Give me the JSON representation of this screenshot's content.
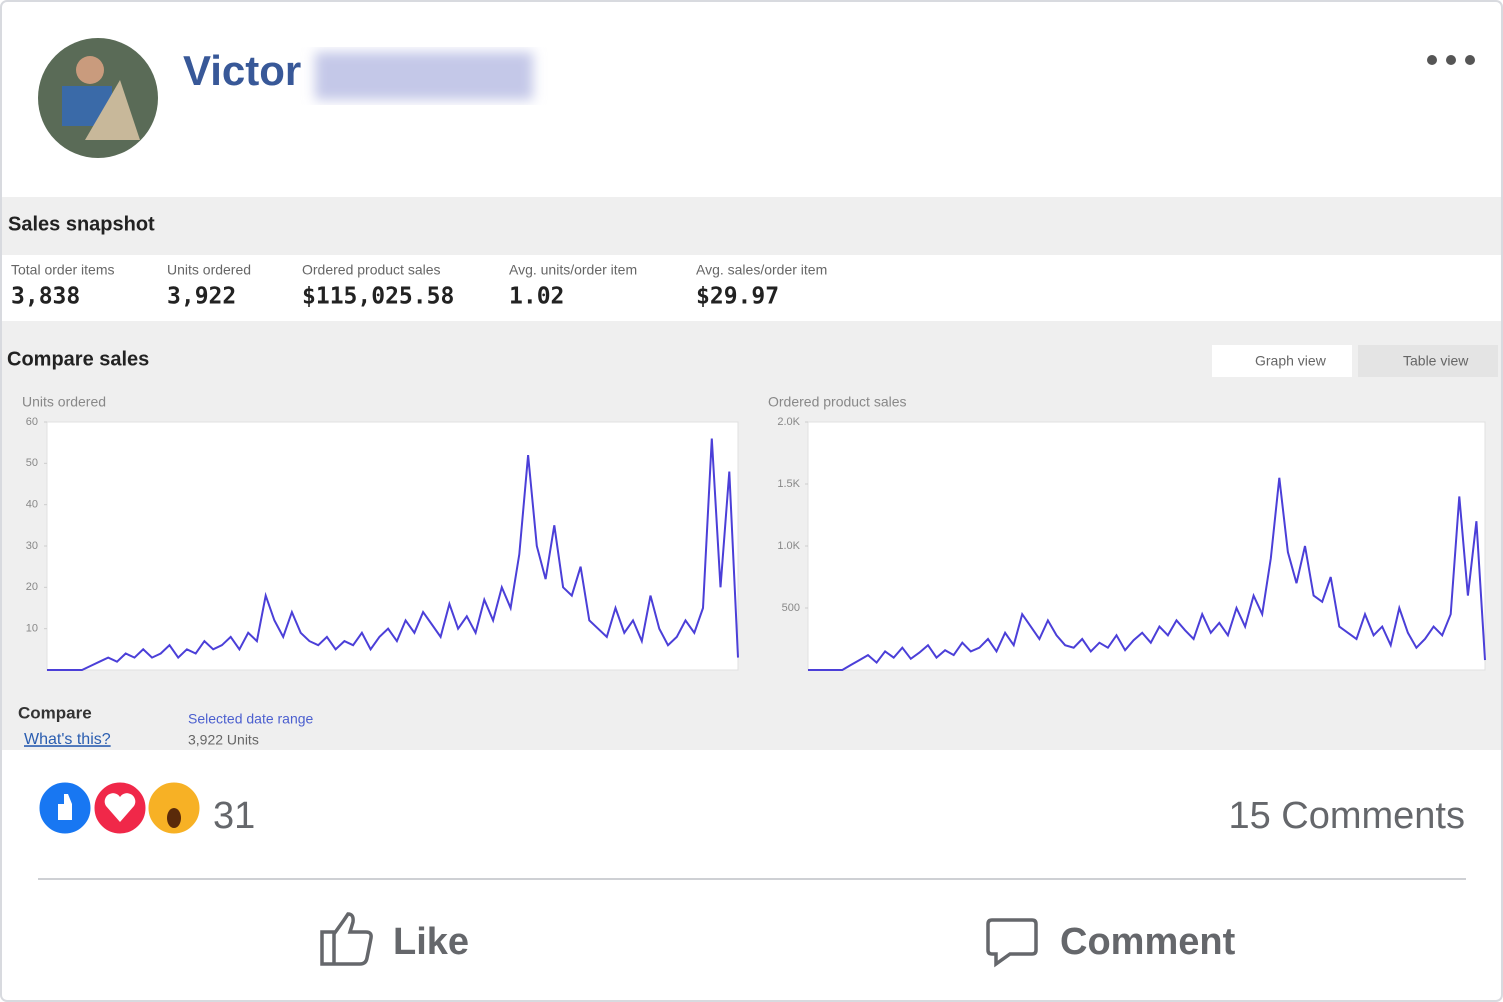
{
  "post": {
    "author": "Victor",
    "reactions": 31,
    "comments": "15 Comments",
    "like": "Like",
    "comment": "Comment"
  },
  "snapshot": {
    "title": "Sales snapshot",
    "metrics": [
      {
        "label": "Total order items",
        "value": "3,838"
      },
      {
        "label": "Units ordered",
        "value": "3,922"
      },
      {
        "label": "Ordered product sales",
        "value": "$115,025.58"
      },
      {
        "label": "Avg. units/order item",
        "value": "1.02"
      },
      {
        "label": "Avg. sales/order item",
        "value": "$29.97"
      }
    ]
  },
  "compare": {
    "title": "Compare sales",
    "graph_view": "Graph view",
    "table_view": "Table view",
    "compare_label": "Compare",
    "whats_this": "What's this?",
    "selected": "Selected date range",
    "units": "3,922 Units"
  },
  "chart_data": [
    {
      "type": "line",
      "title": "Units ordered",
      "color": "#4b3fd8",
      "ylim": [
        0,
        60
      ],
      "yticks": [
        10,
        20,
        30,
        40,
        50,
        60
      ],
      "values": [
        0,
        0,
        0,
        0,
        0,
        1,
        2,
        3,
        2,
        4,
        3,
        5,
        3,
        4,
        6,
        3,
        5,
        4,
        7,
        5,
        6,
        8,
        5,
        9,
        7,
        18,
        12,
        8,
        14,
        9,
        7,
        6,
        8,
        5,
        7,
        6,
        9,
        5,
        8,
        10,
        7,
        12,
        9,
        14,
        11,
        8,
        16,
        10,
        13,
        9,
        17,
        12,
        20,
        15,
        28,
        52,
        30,
        22,
        35,
        20,
        18,
        25,
        12,
        10,
        8,
        15,
        9,
        12,
        7,
        18,
        10,
        6,
        8,
        12,
        9,
        15,
        56,
        20,
        48,
        3
      ]
    },
    {
      "type": "line",
      "title": "Ordered product sales",
      "color": "#4b3fd8",
      "ylim": [
        0,
        2000
      ],
      "yticks": [
        500,
        {
          "value": 1000,
          "label": "1.0K"
        },
        {
          "value": 1500,
          "label": "1.5K"
        },
        {
          "value": 2000,
          "label": "2.0K"
        }
      ],
      "values": [
        0,
        0,
        0,
        0,
        0,
        40,
        80,
        120,
        60,
        150,
        100,
        180,
        90,
        140,
        200,
        100,
        160,
        120,
        220,
        150,
        180,
        250,
        150,
        300,
        200,
        450,
        350,
        250,
        400,
        280,
        200,
        180,
        250,
        150,
        220,
        180,
        280,
        160,
        240,
        300,
        220,
        350,
        280,
        400,
        320,
        250,
        450,
        300,
        380,
        280,
        500,
        350,
        600,
        450,
        900,
        1550,
        950,
        700,
        1000,
        600,
        550,
        750,
        350,
        300,
        250,
        450,
        280,
        350,
        200,
        500,
        300,
        180,
        250,
        350,
        280,
        450,
        1400,
        600,
        1200,
        80
      ]
    }
  ]
}
